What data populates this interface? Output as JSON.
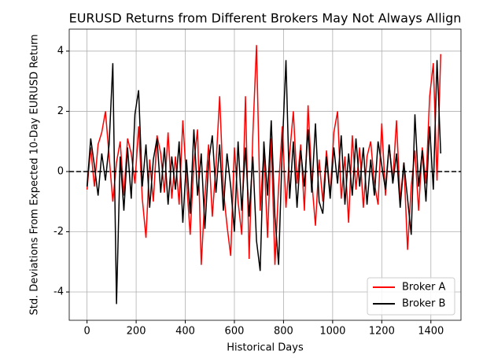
{
  "chart_data": {
    "type": "line",
    "title": "EURUSD Returns from Different Brokers May Not Always Allign",
    "xlabel": "Historical Days",
    "ylabel": "Std. Deviations From Expected 10-Day EURUSD Return",
    "x": [
      0,
      15,
      30,
      45,
      60,
      75,
      90,
      105,
      120,
      135,
      150,
      165,
      180,
      195,
      210,
      225,
      240,
      255,
      270,
      285,
      300,
      315,
      330,
      345,
      360,
      375,
      390,
      405,
      420,
      435,
      450,
      465,
      480,
      495,
      510,
      525,
      540,
      555,
      570,
      585,
      600,
      615,
      630,
      645,
      660,
      675,
      690,
      705,
      720,
      735,
      750,
      765,
      780,
      795,
      810,
      825,
      840,
      855,
      870,
      885,
      900,
      915,
      930,
      945,
      960,
      975,
      990,
      1005,
      1020,
      1035,
      1050,
      1065,
      1080,
      1095,
      1110,
      1125,
      1140,
      1155,
      1170,
      1185,
      1200,
      1215,
      1230,
      1245,
      1260,
      1275,
      1290,
      1305,
      1320,
      1335,
      1350,
      1365,
      1380,
      1395,
      1410,
      1425,
      1440
    ],
    "series": [
      {
        "name": "Broker A",
        "color": "#ff0000",
        "values": [
          -0.6,
          0.8,
          -0.5,
          0.9,
          1.3,
          2.0,
          0.5,
          -1.0,
          0.3,
          1.0,
          -0.8,
          1.1,
          0.6,
          -0.4,
          1.5,
          -0.9,
          -2.2,
          0.4,
          -1.0,
          1.2,
          0.6,
          -0.7,
          1.3,
          -0.9,
          0.5,
          -1.1,
          1.7,
          -0.3,
          -2.1,
          0.3,
          1.4,
          -3.1,
          -0.8,
          0.9,
          -1.5,
          0.2,
          2.5,
          -0.6,
          -1.8,
          -2.8,
          0.8,
          -1.0,
          -2.1,
          2.5,
          -2.9,
          1.2,
          4.2,
          -1.3,
          0.7,
          -2.2,
          1.1,
          -3.1,
          -0.5,
          1.5,
          -1.2,
          0.6,
          2.0,
          -0.4,
          0.9,
          -1.3,
          2.2,
          -0.3,
          -1.8,
          0.4,
          -1.0,
          0.7,
          -0.8,
          1.3,
          2.0,
          -0.9,
          0.5,
          -1.7,
          1.2,
          -0.6,
          0.8,
          -1.2,
          0.5,
          1.0,
          -0.4,
          -1.1,
          1.6,
          -0.8,
          0.9,
          -0.3,
          1.7,
          -1.0,
          0.3,
          -2.6,
          -0.5,
          0.7,
          -1.3,
          0.8,
          -0.4,
          2.5,
          3.6,
          -0.3,
          3.9
        ]
      },
      {
        "name": "Broker B",
        "color": "#000000",
        "values": [
          -0.5,
          1.1,
          0.2,
          -0.8,
          0.6,
          -0.3,
          0.9,
          3.6,
          -4.4,
          0.5,
          -1.3,
          0.8,
          -0.9,
          1.9,
          2.7,
          -0.5,
          0.9,
          -1.2,
          0.4,
          1.1,
          -0.7,
          0.8,
          -1.1,
          0.5,
          -0.6,
          1.0,
          -1.7,
          0.4,
          -1.4,
          1.4,
          -0.8,
          0.6,
          -1.9,
          0.3,
          1.2,
          -0.7,
          0.9,
          -1.3,
          0.6,
          -0.5,
          -2.0,
          1.0,
          -1.3,
          0.8,
          -1.5,
          0.5,
          -2.3,
          -3.3,
          1.0,
          -0.8,
          1.7,
          -1.5,
          -3.1,
          0.8,
          3.7,
          -0.9,
          1.0,
          -1.2,
          0.7,
          -0.5,
          1.4,
          -0.7,
          1.6,
          -1.0,
          -1.4,
          0.5,
          -0.9,
          0.8,
          -0.4,
          1.2,
          -1.1,
          0.6,
          -0.8,
          1.1,
          -0.5,
          0.8,
          -1.1,
          0.4,
          -0.8,
          1.0,
          0.2,
          -0.6,
          0.9,
          -0.4,
          0.6,
          -1.2,
          0.3,
          -0.9,
          -2.1,
          1.9,
          -0.5,
          0.7,
          -1.0,
          1.5,
          -0.6,
          3.7,
          0.6
        ]
      }
    ],
    "xlim": [
      -72.5,
      1522.5
    ],
    "xticks": [
      0,
      200,
      400,
      600,
      800,
      1000,
      1200,
      1400
    ],
    "ylim": [
      -4.94,
      4.73
    ],
    "yticks": [
      -4,
      -2,
      0,
      2,
      4
    ],
    "hline": 0,
    "grid": true,
    "legend": "lower right"
  }
}
